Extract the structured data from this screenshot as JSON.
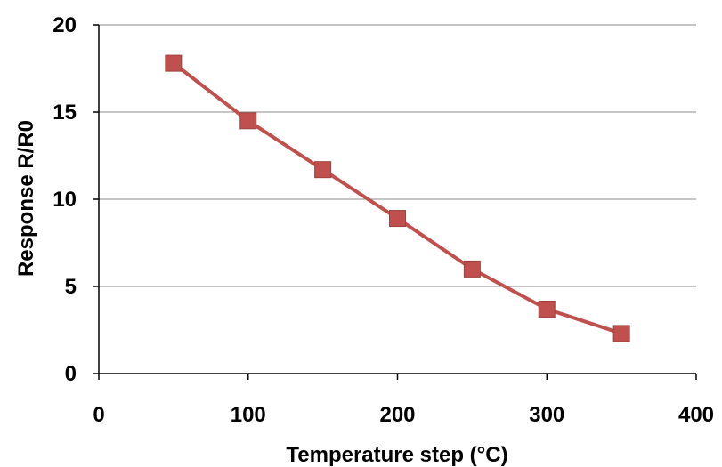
{
  "chart_data": {
    "type": "line",
    "title": "",
    "xlabel": "Temperature step (°C)",
    "ylabel": "Response R/R0",
    "xlim": [
      0,
      400
    ],
    "ylim": [
      0,
      20
    ],
    "xticks": [
      0,
      100,
      200,
      300,
      400
    ],
    "yticks": [
      0,
      5,
      10,
      15,
      20
    ],
    "grid": "horizontal",
    "legend": "none",
    "series": [
      {
        "color": "#C0504D",
        "marker": "square",
        "x": [
          50,
          100,
          150,
          200,
          250,
          300,
          350
        ],
        "y": [
          17.8,
          14.5,
          11.7,
          8.9,
          6.0,
          3.7,
          2.3
        ]
      }
    ]
  }
}
